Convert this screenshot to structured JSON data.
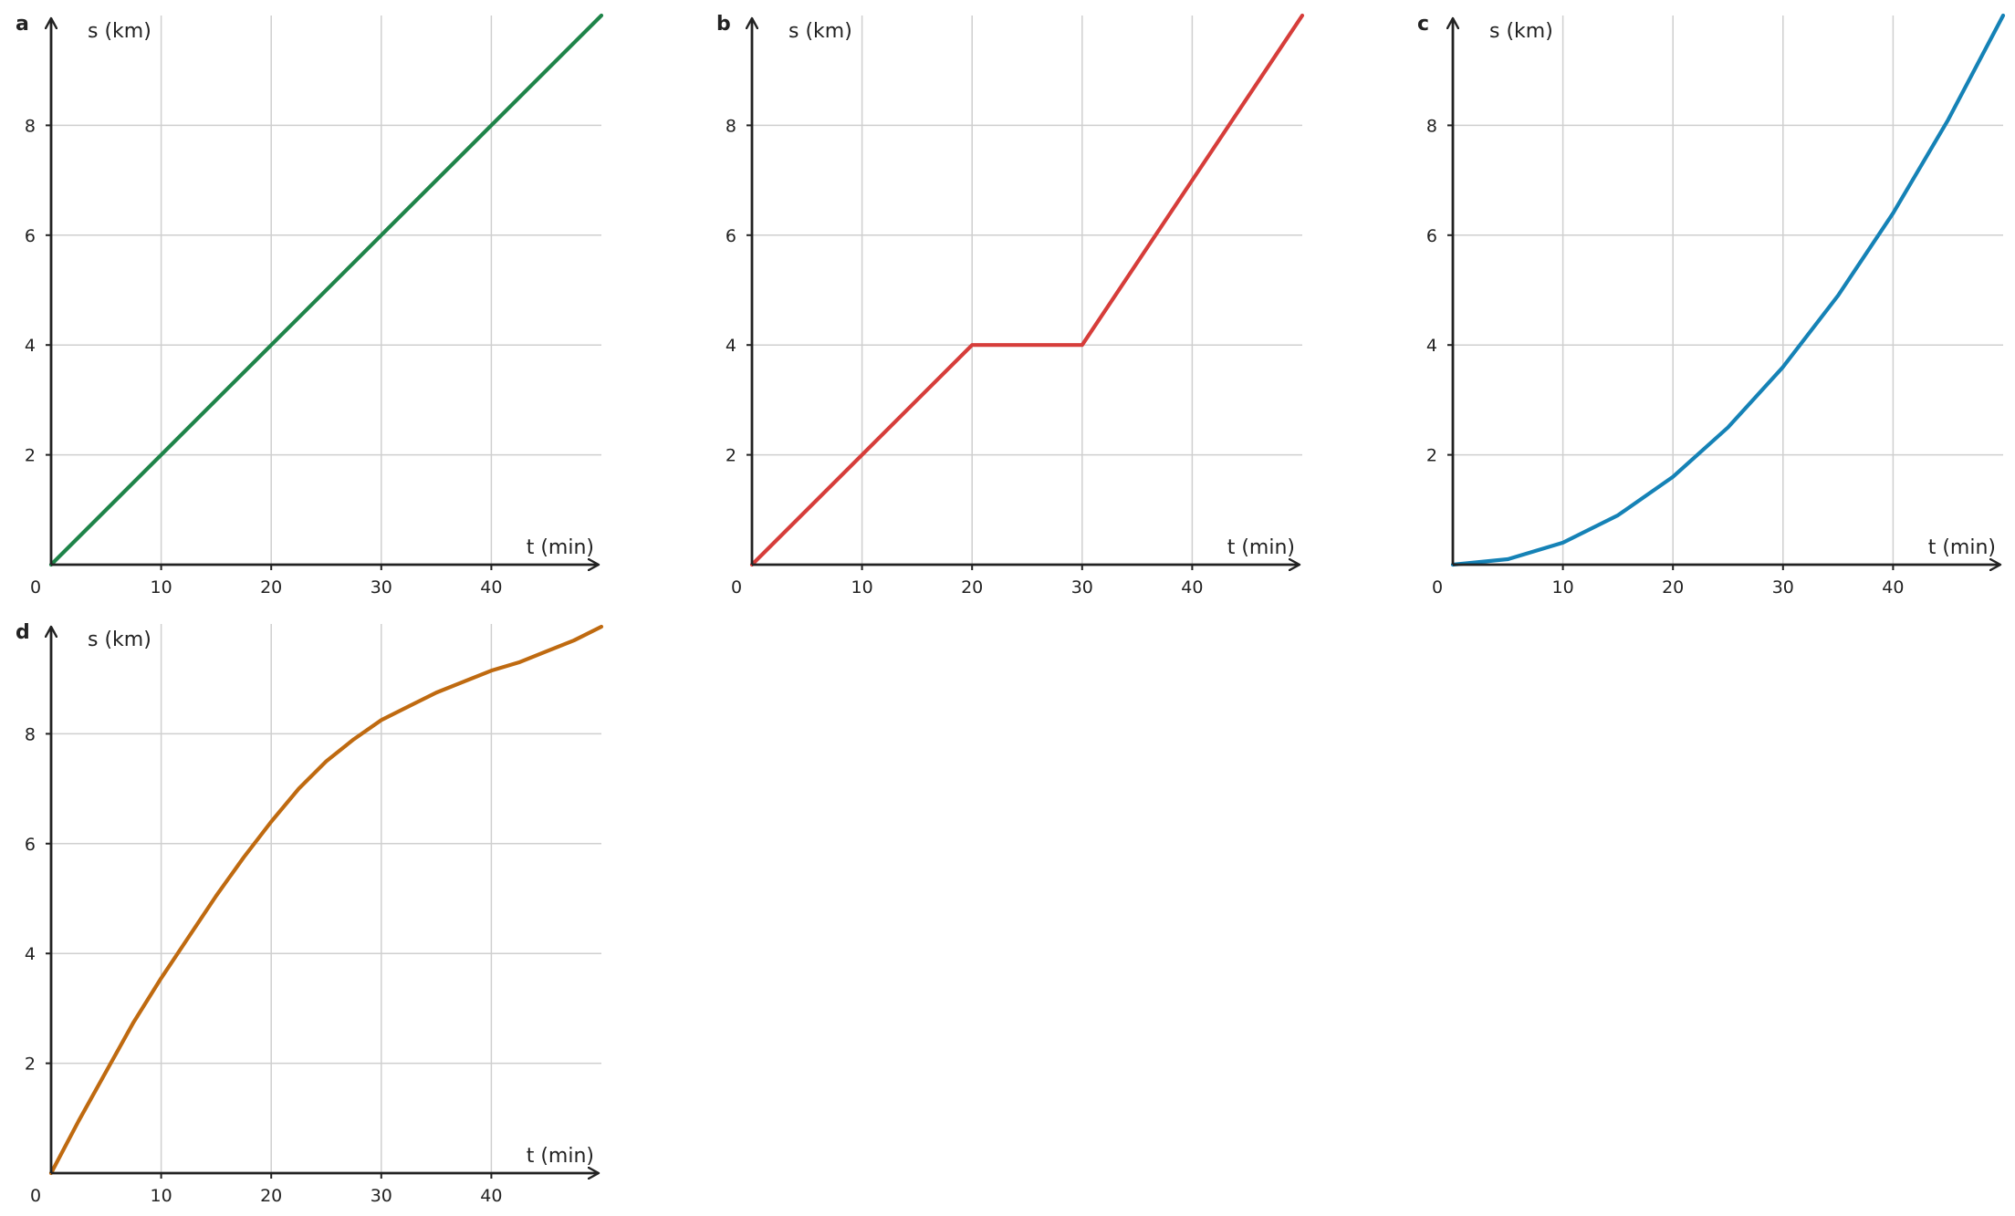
{
  "colors": {
    "a": "#1e8449",
    "b": "#d63d3a",
    "c": "#1582b6",
    "d": "#bf6a10",
    "axis": "#222222",
    "grid": "#cfcfcf"
  },
  "chart_data": [
    {
      "panel": "a",
      "type": "line",
      "xlabel": "t (min)",
      "ylabel": "s (km)",
      "xlim": [
        0,
        50
      ],
      "ylim": [
        0,
        10
      ],
      "xticks": [
        10,
        20,
        30,
        40
      ],
      "yticks": [
        2,
        4,
        6,
        8
      ],
      "origin_label": "0",
      "grid": true,
      "series": [
        {
          "color": "#1e8449",
          "x": [
            0,
            10,
            20,
            30,
            40,
            50
          ],
          "y": [
            0,
            2,
            4,
            6,
            8,
            10
          ]
        }
      ]
    },
    {
      "panel": "b",
      "type": "line",
      "xlabel": "t (min)",
      "ylabel": "s (km)",
      "xlim": [
        0,
        50
      ],
      "ylim": [
        0,
        10
      ],
      "xticks": [
        10,
        20,
        30,
        40
      ],
      "yticks": [
        2,
        4,
        6,
        8
      ],
      "origin_label": "0",
      "grid": true,
      "series": [
        {
          "color": "#d63d3a",
          "x": [
            0,
            20,
            30,
            50
          ],
          "y": [
            0,
            4,
            4,
            10
          ]
        }
      ]
    },
    {
      "panel": "c",
      "type": "line",
      "xlabel": "t (min)",
      "ylabel": "s (km)",
      "xlim": [
        0,
        50
      ],
      "ylim": [
        0,
        10
      ],
      "xticks": [
        10,
        20,
        30,
        40
      ],
      "yticks": [
        2,
        4,
        6,
        8
      ],
      "origin_label": "0",
      "grid": true,
      "series": [
        {
          "color": "#1582b6",
          "x": [
            0,
            5,
            10,
            15,
            20,
            25,
            30,
            35,
            40,
            45,
            50
          ],
          "y": [
            0,
            0.1,
            0.4,
            0.9,
            1.6,
            2.5,
            3.6,
            4.9,
            6.4,
            8.1,
            10
          ]
        }
      ]
    },
    {
      "panel": "d",
      "type": "line",
      "xlabel": "t (min)",
      "ylabel": "s (km)",
      "xlim": [
        0,
        50
      ],
      "ylim": [
        0,
        10
      ],
      "xticks": [
        10,
        20,
        30,
        40
      ],
      "yticks": [
        2,
        4,
        6,
        8
      ],
      "origin_label": "0",
      "grid": true,
      "series": [
        {
          "color": "#bf6a10",
          "x": [
            0,
            2.5,
            5,
            7.5,
            10,
            12.5,
            15,
            17.5,
            20,
            22.5,
            25,
            27.5,
            30,
            32.5,
            35,
            37.5,
            40,
            42.5,
            45,
            47.5,
            50
          ],
          "y": [
            0,
            0.95,
            1.85,
            2.75,
            3.55,
            4.3,
            5.05,
            5.75,
            6.4,
            7.0,
            7.5,
            7.9,
            8.25,
            8.5,
            8.75,
            8.95,
            9.15,
            9.3,
            9.5,
            9.7,
            9.95
          ]
        }
      ]
    }
  ]
}
